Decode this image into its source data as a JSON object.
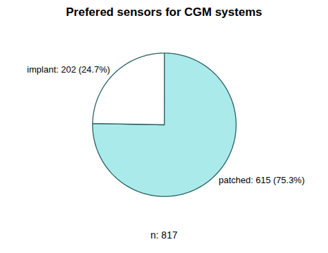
{
  "chart_data": {
    "type": "pie",
    "title": "Prefered sensors for CGM systems",
    "categories": [
      "patched: 615 (75.3%)",
      "implant: 202 (24.7%)"
    ],
    "values": [
      75.3,
      24.7
    ],
    "colors": [
      "#aaeaea",
      "#ffffff"
    ],
    "footnote": "n: 817"
  }
}
